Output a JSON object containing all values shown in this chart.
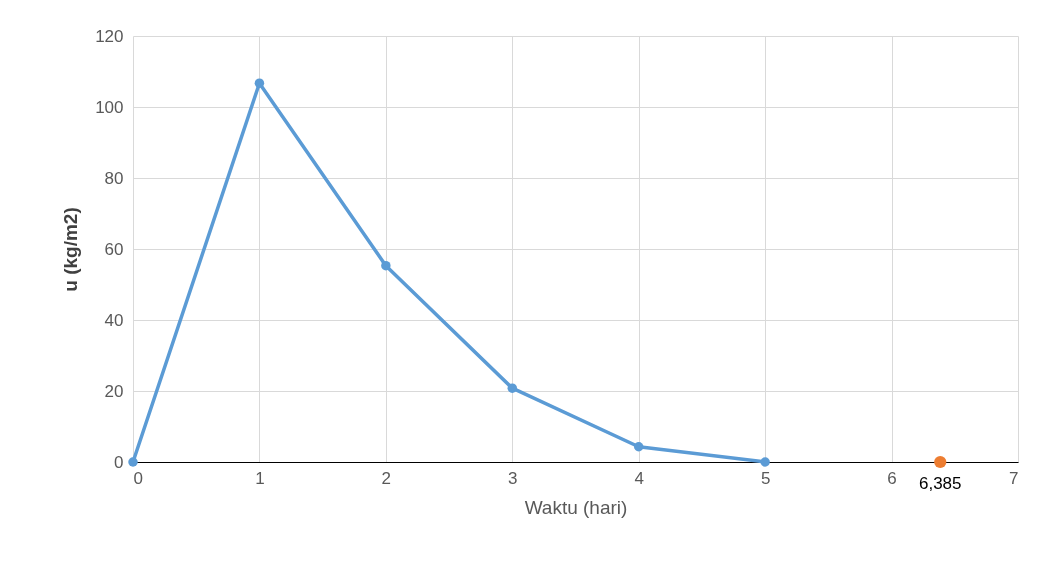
{
  "chart_data": {
    "type": "line",
    "xlabel": "Waktu (hari)",
    "ylabel": "u (kg/m2)",
    "xlim": [
      0,
      7
    ],
    "ylim": [
      0,
      120
    ],
    "xticks": [
      0,
      1,
      2,
      3,
      4,
      5,
      6,
      7
    ],
    "yticks": [
      0,
      20,
      40,
      60,
      80,
      100,
      120
    ],
    "grid": true,
    "marker": "circle",
    "series": [
      {
        "color": "#5b9bd5",
        "x": [
          0,
          1,
          2,
          3,
          4,
          5
        ],
        "values": [
          0,
          106.7,
          55.3,
          20.8,
          4.3,
          0
        ]
      },
      {
        "type": "scatter",
        "color": "#ed7d31",
        "x": [
          6.385
        ],
        "values": [
          0
        ]
      }
    ],
    "annotations": [
      {
        "text": "6,385",
        "x": 6.385,
        "y": 0
      }
    ]
  }
}
